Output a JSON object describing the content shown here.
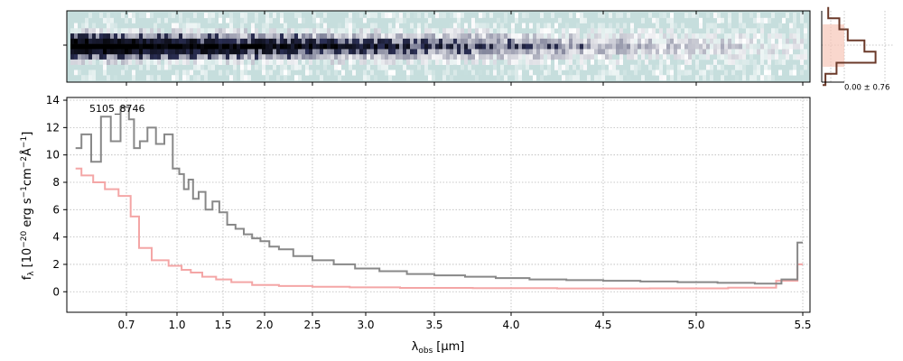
{
  "chart_data": [
    {
      "panel": "2d-spectrum",
      "type": "heatmap",
      "colormap": [
        "#c6dedd",
        "#ffffff",
        "#2b2f55",
        "#000000"
      ],
      "background_color": "#c6dedd",
      "x_ticks_shown": false,
      "y_ticks_shown": false
    },
    {
      "panel": "residual-histogram",
      "type": "histogram",
      "annotation": "0.00 ± 0.76",
      "bins": [
        -3,
        -2,
        -1,
        0,
        1,
        2,
        3
      ],
      "counts": [
        0.05,
        0.25,
        0.95,
        0.75,
        0.45,
        0.3,
        0.1
      ],
      "gaussian_band_color": "#f7c6b8",
      "line_color": "#6b3a2a"
    },
    {
      "panel": "1d-spectrum",
      "type": "line",
      "label": "5105_8746",
      "xlabel_main": "λ",
      "xlabel_sub": "obs",
      "xlabel_unit": "[μm]",
      "ylabel": "f_λ [10^-20 erg s^-1 cm^-2 Å^-1]",
      "ylabel_f": "f",
      "ylabel_lambda": "λ",
      "ylabel_pre": "[10",
      "ylabel_exp1": "−20",
      "ylabel_mid1": " erg s",
      "ylabel_exp2": "−1",
      "ylabel_mid2": "cm",
      "ylabel_exp3": "−2",
      "ylabel_mid3": "Å",
      "ylabel_exp4": "−1",
      "ylabel_post": "]",
      "x_tick_labels": [
        "0.7",
        "1.0",
        "1.5",
        "2.0",
        "2.5",
        "3.0",
        "3.5",
        "4.0",
        "4.5",
        "5.0",
        "5.5"
      ],
      "x_tick_values": [
        0.7,
        1.0,
        1.5,
        2.0,
        2.5,
        3.0,
        3.5,
        4.0,
        4.5,
        5.0,
        5.5
      ],
      "y_tick_labels": [
        "0",
        "2",
        "4",
        "6",
        "8",
        "10",
        "12",
        "14"
      ],
      "y_tick_values": [
        0,
        2,
        4,
        6,
        8,
        10,
        12,
        14
      ],
      "xlim": [
        0.55,
        5.52
      ],
      "ylim": [
        -1.5,
        14.2
      ],
      "grid": true,
      "series": [
        {
          "role": "spectrum",
          "color": "#888888",
          "x": [
            0.57,
            0.6,
            0.62,
            0.65,
            0.67,
            0.7,
            0.73,
            0.76,
            0.8,
            0.85,
            0.9,
            0.95,
            1.0,
            1.05,
            1.1,
            1.15,
            1.2,
            1.27,
            1.35,
            1.42,
            1.5,
            1.6,
            1.7,
            1.8,
            1.9,
            2.0,
            2.1,
            2.2,
            2.4,
            2.6,
            2.8,
            3.0,
            3.2,
            3.4,
            3.6,
            3.8,
            4.0,
            4.2,
            4.4,
            4.6,
            4.8,
            5.0,
            5.2,
            5.35,
            5.45,
            5.5
          ],
          "y": [
            10.5,
            11.5,
            9.5,
            12.8,
            11.0,
            13.5,
            12.6,
            10.5,
            11.0,
            12.0,
            10.8,
            11.5,
            9.0,
            8.6,
            7.5,
            8.2,
            6.8,
            7.3,
            6.0,
            6.6,
            5.8,
            4.9,
            4.6,
            4.2,
            3.9,
            3.7,
            3.3,
            3.1,
            2.6,
            2.3,
            2.0,
            1.7,
            1.5,
            1.3,
            1.2,
            1.1,
            1.0,
            0.9,
            0.85,
            0.8,
            0.75,
            0.7,
            0.65,
            0.6,
            0.9,
            3.6
          ]
        },
        {
          "role": "model",
          "color": "#f4a6a6",
          "x": [
            0.57,
            0.6,
            0.63,
            0.66,
            0.7,
            0.75,
            0.8,
            0.9,
            1.0,
            1.1,
            1.2,
            1.35,
            1.5,
            1.7,
            2.0,
            2.3,
            2.7,
            3.0,
            3.5,
            4.0,
            4.5,
            5.0,
            5.3,
            5.45,
            5.5
          ],
          "y": [
            9.0,
            8.5,
            8.0,
            7.5,
            7.0,
            5.5,
            3.2,
            2.3,
            1.9,
            1.6,
            1.4,
            1.1,
            0.9,
            0.7,
            0.5,
            0.42,
            0.36,
            0.32,
            0.28,
            0.26,
            0.24,
            0.25,
            0.3,
            0.8,
            2.0
          ]
        }
      ]
    }
  ]
}
